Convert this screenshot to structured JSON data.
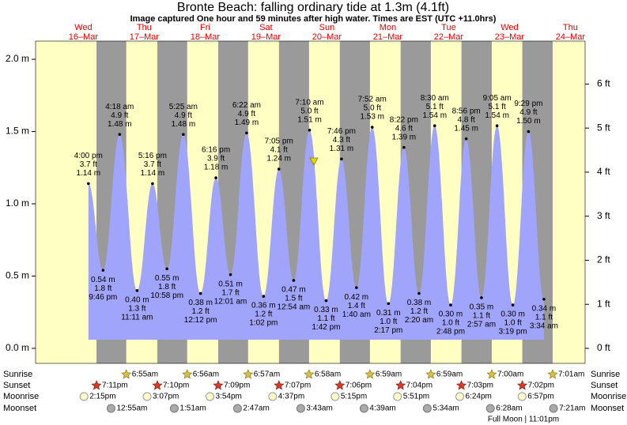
{
  "chart_data": {
    "type": "area",
    "title": "Bronte Beach: falling  ordinary tide at 1.3m (4.1ft)",
    "subtitle": "Image captured One hour and 59 minutes after high water. Times are EST (UTC +11.0hrs)",
    "color": "#a0a4fa",
    "ylim": [
      -0.104,
      2.126
    ],
    "yticks": [
      {
        "value": 0,
        "label": "0.0 m"
      },
      {
        "value": 0.5,
        "label": "0.5 m"
      },
      {
        "value": 1,
        "label": "1.0 m"
      },
      {
        "value": 1.5,
        "label": "1.5 m"
      },
      {
        "value": 2,
        "label": "2.0 m"
      }
    ],
    "y2lim": [
      -0.341,
      6.975
    ],
    "y2ticks": [
      {
        "value": 0,
        "label": "0 ft"
      },
      {
        "value": 1,
        "label": "1 ft"
      },
      {
        "value": 2,
        "label": "2 ft"
      },
      {
        "value": 3,
        "label": "3 ft"
      },
      {
        "value": 4,
        "label": "4 ft"
      },
      {
        "value": 5,
        "label": "5 ft"
      },
      {
        "value": 6,
        "label": "6 ft"
      }
    ],
    "rows": {
      "sunrise": "Sunrise",
      "sunset": "Sunset",
      "moonrise": "Moonrise",
      "moonset": "Moonset"
    },
    "days": [
      {
        "weekday": "Wed",
        "date": "16–Mar",
        "sunset": "7:11pm",
        "moonrise": "2:15pm",
        "tides": [
          {
            "time": "4:00 pm",
            "ft": "3.7 ft",
            "m": "1.14 m",
            "value": 1.14
          },
          {
            "time": "9:46 pm",
            "ft": "1.8 ft",
            "m": "0.54 m",
            "value": 0.54
          }
        ]
      },
      {
        "weekday": "Thu",
        "date": "17–Mar",
        "sunrise": "6:55am",
        "sunset": "7:10pm",
        "moonrise": "3:07pm",
        "moonset": "12:55am",
        "tides": [
          {
            "time": "4:18 am",
            "ft": "4.9 ft",
            "m": "1.48 m",
            "value": 1.48
          },
          {
            "time": "11:11 am",
            "ft": "1.3 ft",
            "m": "0.40 m",
            "value": 0.4
          },
          {
            "time": "5:16 pm",
            "ft": "3.7 ft",
            "m": "1.14 m",
            "value": 1.14
          },
          {
            "time": "10:58 pm",
            "ft": "1.8 ft",
            "m": "0.55 m",
            "value": 0.55
          }
        ]
      },
      {
        "weekday": "Fri",
        "date": "18–Mar",
        "sunrise": "6:56am",
        "sunset": "7:09pm",
        "moonrise": "3:54pm",
        "moonset": "1:51am",
        "tides": [
          {
            "time": "5:25 am",
            "ft": "4.9 ft",
            "m": "1.48 m",
            "value": 1.48
          },
          {
            "time": "12:12 pm",
            "ft": "1.2 ft",
            "m": "0.38 m",
            "value": 0.38
          },
          {
            "time": "6:16 pm",
            "ft": "3.9 ft",
            "m": "1.18 m",
            "value": 1.18
          }
        ]
      },
      {
        "weekday": "Sat",
        "date": "19–Mar",
        "sunrise": "6:57am",
        "sunset": "7:07pm",
        "moonrise": "4:37pm",
        "moonset": "2:47am",
        "tides": [
          {
            "time": "12:01 am",
            "ft": "1.7 ft",
            "m": "0.51 m",
            "value": 0.51
          },
          {
            "time": "6:22 am",
            "ft": "4.9 ft",
            "m": "1.49 m",
            "value": 1.49
          },
          {
            "time": "1:02 pm",
            "ft": "1.2 ft",
            "m": "0.36 m",
            "value": 0.36
          },
          {
            "time": "7:05 pm",
            "ft": "4.1 ft",
            "m": "1.24 m",
            "value": 1.24
          }
        ]
      },
      {
        "weekday": "Sun",
        "date": "20–Mar",
        "sunrise": "6:58am",
        "sunset": "7:06pm",
        "moonrise": "5:15pm",
        "moonset": "3:43am",
        "tides": [
          {
            "time": "12:54 am",
            "ft": "1.5 ft",
            "m": "0.47 m",
            "value": 0.47
          },
          {
            "time": "7:10 am",
            "ft": "5.0 ft",
            "m": "1.51 m",
            "value": 1.51
          },
          {
            "time": "1:42 pm",
            "ft": "1.1 ft",
            "m": "0.33 m",
            "value": 0.33
          },
          {
            "time": "7:46 pm",
            "ft": "4.3 ft",
            "m": "1.31 m",
            "value": 1.31
          }
        ]
      },
      {
        "weekday": "Mon",
        "date": "21–Mar",
        "sunrise": "6:59am",
        "sunset": "7:04pm",
        "moonrise": "5:51pm",
        "moonset": "4:39am",
        "tides": [
          {
            "time": "1:40 am",
            "ft": "1.4 ft",
            "m": "0.42 m",
            "value": 0.42
          },
          {
            "time": "7:52 am",
            "ft": "5.0 ft",
            "m": "1.53 m",
            "value": 1.53
          },
          {
            "time": "2:17 pm",
            "ft": "1.0 ft",
            "m": "0.31 m",
            "value": 0.31
          },
          {
            "time": "8:22 pm",
            "ft": "4.6 ft",
            "m": "1.39 m",
            "value": 1.39
          }
        ]
      },
      {
        "weekday": "Tue",
        "date": "22–Mar",
        "sunrise": "6:59am",
        "sunset": "7:03pm",
        "moonrise": "6:24pm",
        "moonset": "5:34am",
        "tides": [
          {
            "time": "2:20 am",
            "ft": "1.2 ft",
            "m": "0.38 m",
            "value": 0.38
          },
          {
            "time": "8:30 am",
            "ft": "5.1 ft",
            "m": "1.54 m",
            "value": 1.54
          },
          {
            "time": "2:48 pm",
            "ft": "1.0 ft",
            "m": "0.30 m",
            "value": 0.3
          },
          {
            "time": "8:56 pm",
            "ft": "4.8 ft",
            "m": "1.45 m",
            "value": 1.45
          }
        ]
      },
      {
        "weekday": "Wed",
        "date": "23–Mar",
        "sunrise": "7:00am",
        "sunset": "7:02pm",
        "moonrise": "6:57pm",
        "moonset": "6:28am",
        "tides": [
          {
            "time": "2:57 am",
            "ft": "1.1 ft",
            "m": "0.35 m",
            "value": 0.35
          },
          {
            "time": "9:05 am",
            "ft": "5.1 ft",
            "m": "1.54 m",
            "value": 1.54
          },
          {
            "time": "3:19 pm",
            "ft": "1.0 ft",
            "m": "0.30 m",
            "value": 0.3
          },
          {
            "time": "9:29 pm",
            "ft": "4.9 ft",
            "m": "1.50 m",
            "value": 1.5
          }
        ]
      },
      {
        "weekday": "Thu",
        "date": "24–Mar",
        "sunrise": "7:01am",
        "moonset": "7:21am",
        "tides": [
          {
            "time": "3:34 am",
            "ft": "1.1 ft",
            "m": "0.34 m",
            "value": 0.34
          }
        ]
      }
    ],
    "full_moon": "Full Moon | 11:01pm"
  }
}
